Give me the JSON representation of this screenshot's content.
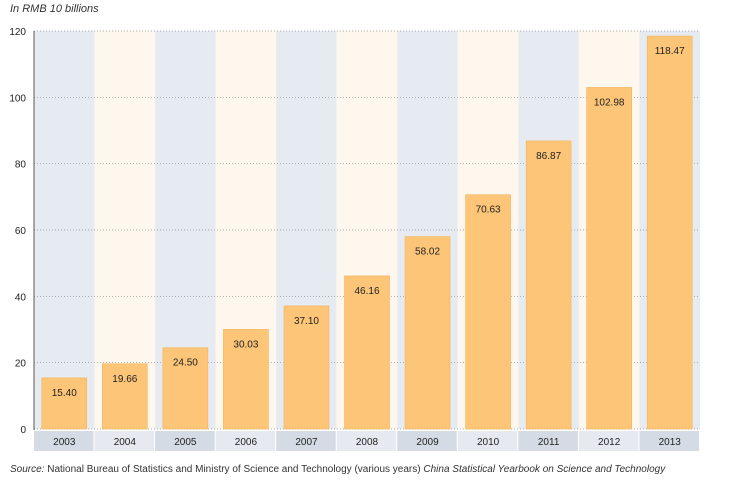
{
  "chart_data": {
    "type": "bar",
    "unit_label": "In RMB 10 billions",
    "categories": [
      "2003",
      "2004",
      "2005",
      "2006",
      "2007",
      "2008",
      "2009",
      "2010",
      "2011",
      "2012",
      "2013"
    ],
    "values": [
      15.4,
      19.66,
      24.5,
      30.03,
      37.1,
      46.16,
      58.02,
      70.63,
      86.87,
      102.98,
      118.47
    ],
    "value_labels": [
      "15.40",
      "19.66",
      "24.50",
      "30.03",
      "37.10",
      "46.16",
      "58.02",
      "70.63",
      "86.87",
      "102.98",
      "118.47"
    ],
    "y_ticks": [
      0,
      20,
      40,
      60,
      80,
      100,
      120
    ],
    "ylim": [
      0,
      120
    ],
    "grid": true,
    "xlabel": "",
    "ylabel": ""
  },
  "source": {
    "prefix": "Source:",
    "text": "National Bureau of Statistics and Ministry of Science and Technology (various years)",
    "title": "China Statistical Yearbook on Science and Technology"
  },
  "colors": {
    "bar": "#fcc577",
    "bar_edge": "#f5b35c",
    "column_blue": "#e6ebf1",
    "column_cream": "#fdf7ee",
    "axis_bar": "#e6eaf0",
    "axis_bar_dark": "#d4dbe4",
    "grid": "#8c8c8c",
    "text": "#222222"
  }
}
